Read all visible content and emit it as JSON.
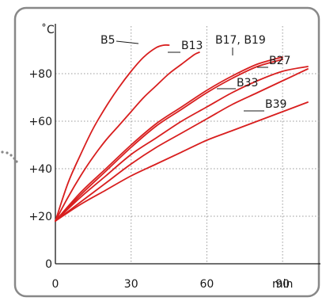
{
  "chart_data": {
    "type": "line",
    "ylabel": "˚C",
    "xlabel": "min",
    "xlim": [
      0,
      105
    ],
    "ylim": [
      0,
      100
    ],
    "xticks": [
      0,
      30,
      60,
      90
    ],
    "xtick_labels": [
      "0",
      "30",
      "60",
      "90"
    ],
    "yticks": [
      0,
      20,
      40,
      60,
      80
    ],
    "ytick_labels": [
      "0",
      "+20",
      "+40",
      "+60",
      "+80"
    ],
    "grid": true,
    "colors": {
      "curve": "#d81e1e",
      "grid": "#9a9a9a",
      "frame": "#888888"
    },
    "series": [
      {
        "name": "B5",
        "x": [
          0,
          5,
          10,
          15,
          20,
          25,
          30,
          35,
          40,
          43,
          45
        ],
        "y": [
          18,
          34,
          46,
          57,
          66,
          74,
          81,
          87,
          91,
          92,
          92
        ]
      },
      {
        "name": "B13",
        "x": [
          0,
          5,
          10,
          15,
          20,
          25,
          30,
          35,
          40,
          45,
          50,
          55,
          57
        ],
        "y": [
          18,
          28,
          37,
          45,
          52,
          58,
          64,
          70,
          75,
          80,
          84,
          88,
          89
        ]
      },
      {
        "name": "B17",
        "x": [
          0,
          10,
          20,
          30,
          40,
          50,
          60,
          70,
          80,
          90
        ],
        "y": [
          18,
          30,
          40,
          50,
          59,
          66,
          73,
          79,
          84,
          87
        ]
      },
      {
        "name": "B19",
        "x": [
          0,
          10,
          20,
          30,
          40,
          50,
          60,
          70,
          80,
          90
        ],
        "y": [
          18,
          29,
          39,
          49,
          58,
          65,
          72,
          78,
          83,
          86
        ]
      },
      {
        "name": "B27",
        "x": [
          0,
          10,
          20,
          30,
          40,
          50,
          60,
          70,
          80,
          90,
          100
        ],
        "y": [
          18,
          28,
          37,
          46,
          53,
          60,
          66,
          72,
          77,
          81,
          83
        ]
      },
      {
        "name": "B33",
        "x": [
          0,
          10,
          20,
          30,
          40,
          50,
          60,
          70,
          80,
          90,
          100
        ],
        "y": [
          18,
          26,
          34,
          42,
          49,
          55,
          61,
          67,
          72,
          77,
          82
        ]
      },
      {
        "name": "B39",
        "x": [
          0,
          10,
          20,
          30,
          40,
          50,
          60,
          70,
          80,
          90,
          100
        ],
        "y": [
          18,
          25,
          31,
          37,
          42,
          47,
          52,
          56,
          60,
          64,
          68
        ]
      }
    ],
    "annotations": [
      {
        "text": "B5",
        "series": [
          "B5"
        ]
      },
      {
        "text": "B13",
        "series": [
          "B13"
        ]
      },
      {
        "text": "B17, B19",
        "series": [
          "B17",
          "B19"
        ]
      },
      {
        "text": "B27",
        "series": [
          "B27"
        ]
      },
      {
        "text": "B33",
        "series": [
          "B33"
        ]
      },
      {
        "text": "B39",
        "series": [
          "B39"
        ]
      }
    ]
  }
}
